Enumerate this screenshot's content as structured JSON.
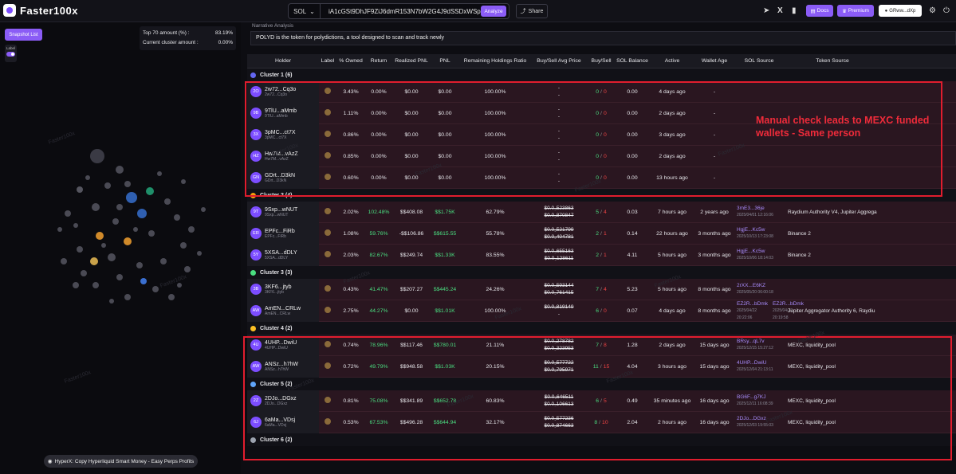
{
  "app": {
    "name": "Faster100x"
  },
  "topbar": {
    "chain": "SOL",
    "address": "iA1cGSt9DhJF9ZiJ6dmR153N7bW2G4J9dSSDxWSpump",
    "analyze": "Analyze",
    "share": "Share",
    "docs": "Docs",
    "premium": "Premium",
    "wallet": "GRww...dXp"
  },
  "left": {
    "snapshot_button": "Snapshot List",
    "label_toggle": "Label",
    "top70_label": "Top 70 amount (%) :",
    "top70_value": "83.19%",
    "cluster_label": "Current cluster amount :",
    "cluster_value": "0.00%",
    "promo": "HyperX: Copy Hyperliquid Smart Money - Easy Perps Profits"
  },
  "narrative": {
    "title": "Narrative Analysis",
    "text": "POLYD is the token for polydictions, a tool designed to scan and track newly"
  },
  "columns": [
    "Holder",
    "Label",
    "% Owned",
    "Return",
    "Realized PNL",
    "PNL",
    "Remaining Holdings Ratio",
    "Buy/Sell Avg Price",
    "Buy/Sell",
    "SOL Balance",
    "Active",
    "Wallet Age",
    "SOL Source",
    "Token Source"
  ],
  "annotation": "Manual check leads to MEXC funded wallets - Same person",
  "watermark": "Faster100x",
  "colors": {
    "accent": "#8b5cf6",
    "highlight": "#e11d2e"
  },
  "clusters": [
    {
      "name": "Cluster 1 (6)",
      "color": "#6366f1",
      "rows": [
        {
          "av": "2O",
          "name": "2w72...Cq3o",
          "short": "2w72...Cq3o",
          "owned": "3.43%",
          "ret": "0.00%",
          "rpnl": "$0.00",
          "pnl": "$0.00",
          "ratio": "100.00%",
          "avg1": "-",
          "avg2": "-",
          "buy": "0",
          "sell": "0",
          "sol": "0.00",
          "active": "4 days ago",
          "age": "-",
          "src": "",
          "srcd": "",
          "src2": "",
          "src2d": "",
          "tok": ""
        },
        {
          "av": "9B",
          "name": "9TlU...aMmb",
          "short": "9TlU...aMmb",
          "owned": "1.11%",
          "ret": "0.00%",
          "rpnl": "$0.00",
          "pnl": "$0.00",
          "ratio": "100.00%",
          "avg1": "-",
          "avg2": "-",
          "buy": "0",
          "sell": "0",
          "sol": "0.00",
          "active": "2 days ago",
          "age": "-",
          "src": "",
          "srcd": "",
          "src2": "",
          "src2d": "",
          "tok": ""
        },
        {
          "av": "3X",
          "name": "3pMC...ct7X",
          "short": "3pMC...ct7X",
          "owned": "0.86%",
          "ret": "0.00%",
          "rpnl": "$0.00",
          "pnl": "$0.00",
          "ratio": "100.00%",
          "avg1": "-",
          "avg2": "-",
          "buy": "0",
          "sell": "0",
          "sol": "0.00",
          "active": "3 days ago",
          "age": "-",
          "src": "",
          "srcd": "",
          "src2": "",
          "src2d": "",
          "tok": ""
        },
        {
          "av": "HZ",
          "name": "Hw7M...vAzZ",
          "short": "Hw7M...vAzZ",
          "owned": "0.85%",
          "ret": "0.00%",
          "rpnl": "$0.00",
          "pnl": "$0.00",
          "ratio": "100.00%",
          "avg1": "-",
          "avg2": "-",
          "buy": "0",
          "sell": "0",
          "sol": "0.00",
          "active": "2 days ago",
          "age": "-",
          "src": "",
          "srcd": "",
          "src2": "",
          "src2d": "",
          "tok": ""
        },
        {
          "av": "GN",
          "name": "GDrt...D3kN",
          "short": "GDrt...D3kN",
          "owned": "0.60%",
          "ret": "0.00%",
          "rpnl": "$0.00",
          "pnl": "$0.00",
          "ratio": "100.00%",
          "avg1": "-",
          "avg2": "-",
          "buy": "0",
          "sell": "0",
          "sol": "0.00",
          "active": "13 hours ago",
          "age": "-",
          "src": "",
          "srcd": "",
          "src2": "",
          "src2d": "",
          "tok": ""
        }
      ]
    },
    {
      "name": "Cluster 2 (4)",
      "color": "#f59e0b",
      "rows": [
        {
          "av": "9T",
          "name": "9Sxp...wNUT",
          "short": "9Sxp...wNUT",
          "owned": "2.02%",
          "ret": "102.48%",
          "rpnl": "$$408.08",
          "pnl": "$$1.75K",
          "ratio": "62.79%",
          "avg1": "$0.0₅523863",
          "avg2": "$0.0₅870847",
          "buy": "5",
          "sell": "4",
          "sol": "0.03",
          "active": "7 hours ago",
          "age": "2 years ago",
          "src": "3mE3...36je",
          "srcd": "2025/04/01 12:16:06",
          "src2": "",
          "src2d": "",
          "tok": "Raydium Authority V4, Jupiter Aggrega"
        },
        {
          "av": "ER",
          "name": "EPFc...FiRb",
          "short": "EPFc...FiRb",
          "owned": "1.08%",
          "ret": "59.76%",
          "rpnl": "-$$106.86",
          "pnl": "$$615.55",
          "ratio": "55.78%",
          "avg1": "$0.0₅521799",
          "avg2": "$0.0₅404781",
          "buy": "2",
          "sell": "1",
          "sol": "0.14",
          "active": "22 hours ago",
          "age": "3 months ago",
          "src": "HgjE...Kc5w",
          "srcd": "2025/10/13 17:23:08",
          "src2": "",
          "src2d": "",
          "tok": "Binance 2"
        },
        {
          "av": "5Y",
          "name": "5XSA...dDLY",
          "short": "5XSA...dDLY",
          "owned": "2.03%",
          "ret": "82.67%",
          "rpnl": "$$249.74",
          "pnl": "$$1.33K",
          "ratio": "83.55%",
          "avg1": "$0.0₅655163",
          "avg2": "$0.0₅128611",
          "buy": "2",
          "sell": "1",
          "sol": "4.11",
          "active": "5 hours ago",
          "age": "3 months ago",
          "src": "HgjE...Kc5w",
          "srcd": "2025/10/06 18:14:03",
          "src2": "",
          "src2d": "",
          "tok": "Binance 2"
        }
      ]
    },
    {
      "name": "Cluster 3 (3)",
      "color": "#4ade80",
      "rows": [
        {
          "av": "3B",
          "name": "3KF6...jtyb",
          "short": "3KF6...jtyb",
          "owned": "0.43%",
          "ret": "41.47%",
          "rpnl": "$$207.27",
          "pnl": "$$445.24",
          "ratio": "24.26%",
          "avg1": "$0.0₅593144",
          "avg2": "$0.0₅761415",
          "buy": "7",
          "sell": "4",
          "sol": "5.23",
          "active": "5 hours ago",
          "age": "8 months ago",
          "src": "2rXX...E6KZ",
          "srcd": "2025/05/20 06:00:18",
          "src2": "",
          "src2d": "",
          "tok": ""
        },
        {
          "av": "AW",
          "name": "AmEN...CRLw",
          "short": "AmEN...CRLw",
          "owned": "2.75%",
          "ret": "44.27%",
          "rpnl": "$0.00",
          "pnl": "$$1.01K",
          "ratio": "100.00%",
          "avg1": "$0.0₅819149",
          "avg2": "-",
          "buy": "6",
          "sell": "0",
          "sol": "0.07",
          "active": "4 days ago",
          "age": "8 months ago",
          "src": "EZ2R...bDmk",
          "srcd": "2025/04/22 20:22:06",
          "src2": "EZ2R...bDmk",
          "src2d": "2025/04/22 20:19:58",
          "tok": "Jupiter Aggregator Authority 6, Raydiu"
        }
      ]
    },
    {
      "name": "Cluster 4 (2)",
      "color": "#fbbf24",
      "rows": [
        {
          "av": "4U",
          "name": "4UHP...DwiU",
          "short": "4UHP...DwiU",
          "owned": "0.74%",
          "ret": "78.96%",
          "rpnl": "$$117.46",
          "pnl": "$$780.01",
          "ratio": "21.11%",
          "avg1": "$0.0₅278782",
          "avg2": "$0.0₅323953",
          "buy": "7",
          "sell": "8",
          "sol": "1.28",
          "active": "2 days ago",
          "age": "15 days ago",
          "src": "BRsy...qL7v",
          "srcd": "2025/12/15 15:27:12",
          "src2": "",
          "src2d": "",
          "tok": "MEXC, liquidity_pool"
        },
        {
          "av": "AW",
          "name": "ANSz...h7hW",
          "short": "ANSz...h7hW",
          "owned": "0.72%",
          "ret": "49.79%",
          "rpnl": "$$948.58",
          "pnl": "$$1.03K",
          "ratio": "20.15%",
          "avg1": "$0.0₅577722",
          "avg2": "$0.0₅795971",
          "buy": "11",
          "sell": "15",
          "sol": "4.04",
          "active": "3 hours ago",
          "age": "15 days ago",
          "src": "4UHP...DwiU",
          "srcd": "2025/12/04 21:13:11",
          "src2": "",
          "src2d": "",
          "tok": "MEXC, liquidity_pool"
        }
      ]
    },
    {
      "name": "Cluster 5 (2)",
      "color": "#60a5fa",
      "rows": [
        {
          "av": "2Z",
          "name": "2DJo...DGxz",
          "short": "2DJo...DGxz",
          "owned": "0.81%",
          "ret": "75.08%",
          "rpnl": "$$341.89",
          "pnl": "$$652.78",
          "ratio": "60.83%",
          "avg1": "$0.0₅646511",
          "avg2": "$0.0₅106613",
          "buy": "6",
          "sell": "5",
          "sol": "0.49",
          "active": "35 minutes ago",
          "age": "16 days ago",
          "src": "BG6F...g7KJ",
          "srcd": "2025/12/11 16:08:39",
          "src2": "",
          "src2d": "",
          "tok": "MEXC, liquidity_pool"
        },
        {
          "av": "6J",
          "name": "6aMa...VDsj",
          "short": "6aMa...VDsj",
          "owned": "0.53%",
          "ret": "67.53%",
          "rpnl": "$$496.28",
          "pnl": "$$644.94",
          "ratio": "32.17%",
          "avg1": "$0.0₅577236",
          "avg2": "$0.0₅874663",
          "buy": "8",
          "sell": "10",
          "sol": "2.04",
          "active": "2 hours ago",
          "age": "16 days ago",
          "src": "2DJo...DGxz",
          "srcd": "2025/12/03 19:55:03",
          "src2": "",
          "src2d": "",
          "tok": "MEXC, liquidity_pool"
        }
      ]
    },
    {
      "name": "Cluster 6 (2)",
      "color": "#9ca3af",
      "rows": []
    }
  ]
}
